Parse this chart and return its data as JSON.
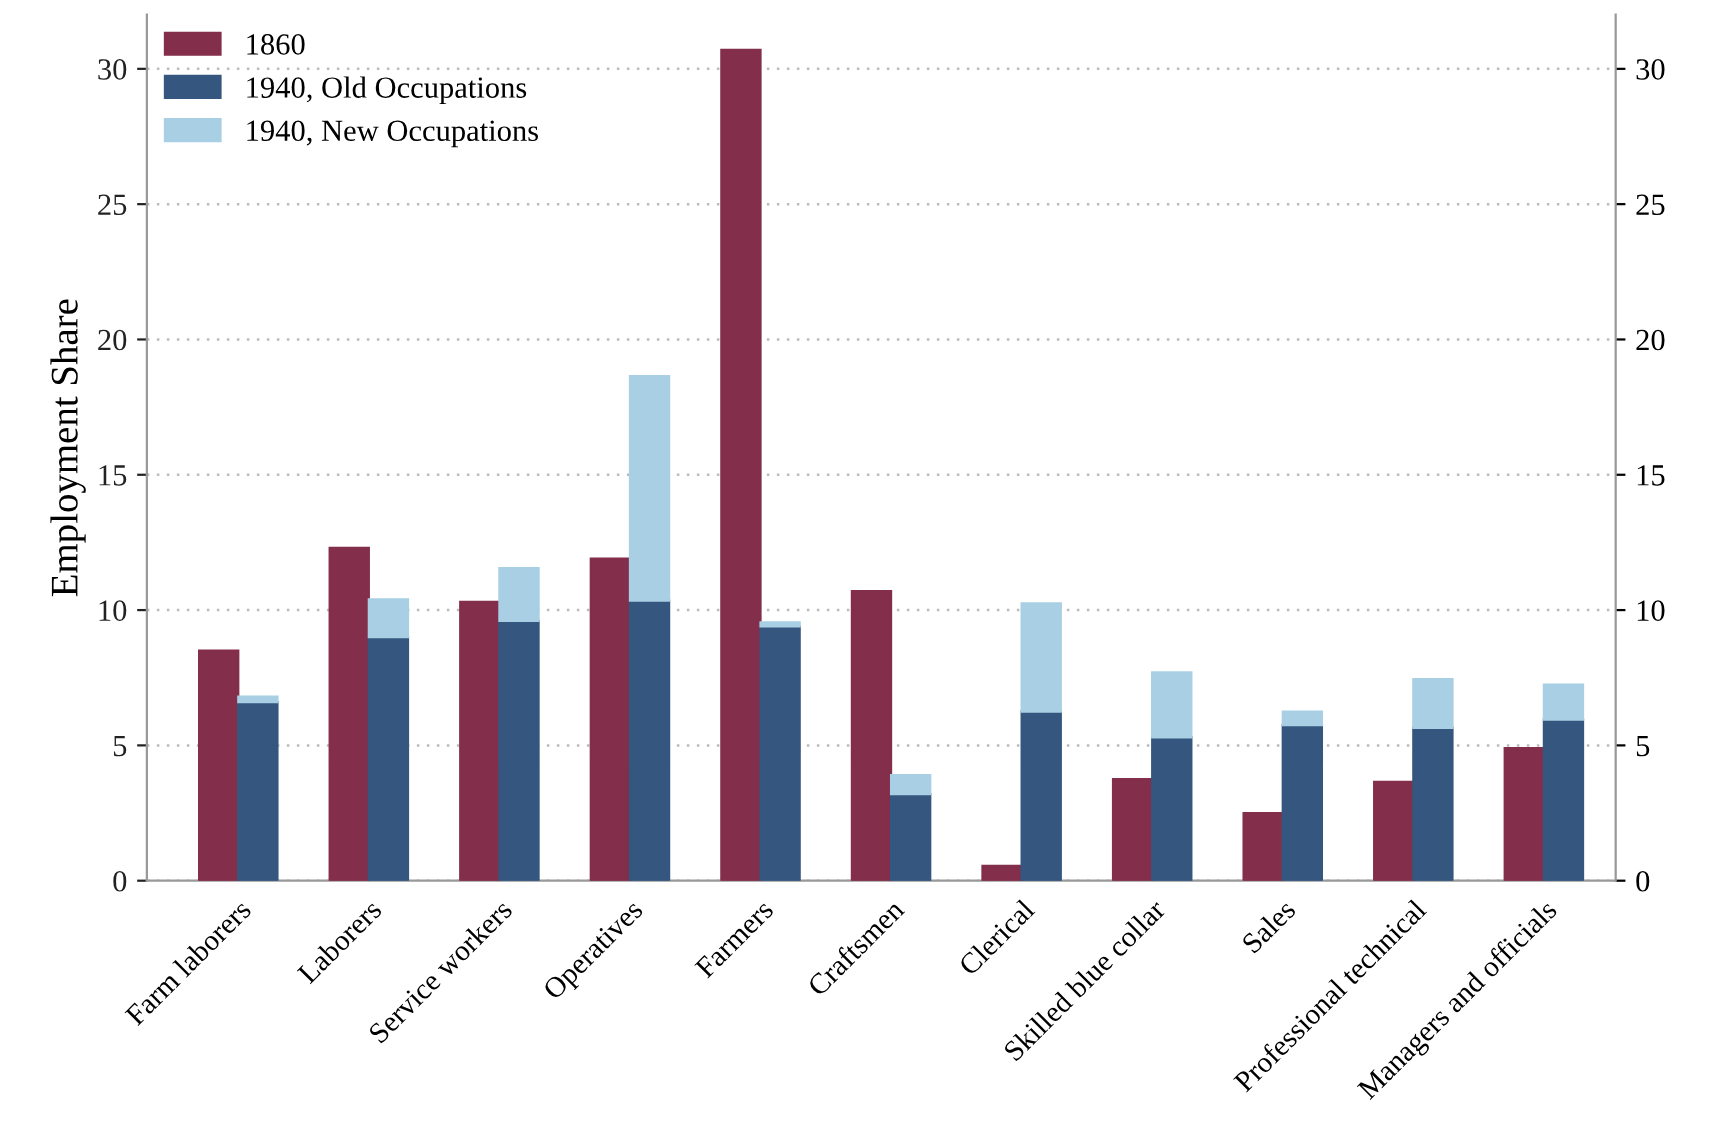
{
  "chart_data": {
    "type": "bar",
    "ylabel": "Employment Share",
    "categories": [
      "Farm laborers",
      "Laborers",
      "Service workers",
      "Operatives",
      "Farmers",
      "Craftsmen",
      "Clerical",
      "Skilled blue collar",
      "Sales",
      "Professional technical",
      "Managers and officials"
    ],
    "series": [
      {
        "name": "1860",
        "color": "#832e4a",
        "values": [
          8.5,
          12.3,
          10.3,
          11.9,
          30.7,
          10.7,
          0.55,
          3.75,
          2.5,
          3.65,
          4.9
        ]
      },
      {
        "name": "1940, Old Occupations",
        "color": "#35577f",
        "values": [
          6.6,
          9.0,
          9.6,
          10.35,
          9.4,
          3.2,
          6.25,
          5.3,
          5.75,
          5.65,
          5.95
        ],
        "base": [
          0,
          0,
          0,
          0,
          0,
          0,
          0,
          0,
          0,
          0,
          0
        ]
      },
      {
        "name": "1940, New Occupations",
        "color": "#a8cfe3",
        "values": [
          0.2,
          1.4,
          1.95,
          8.3,
          0.15,
          0.7,
          4.0,
          2.4,
          0.5,
          1.8,
          1.3
        ],
        "base": [
          6.6,
          9.0,
          9.6,
          10.35,
          9.4,
          3.2,
          6.25,
          5.3,
          5.75,
          5.65,
          5.95
        ]
      }
    ],
    "ylim": [
      0,
      32
    ],
    "yticks": [
      0,
      5,
      10,
      15,
      20,
      25,
      30
    ],
    "y2lim": [
      0,
      32
    ],
    "y2ticks": [
      0,
      5,
      10,
      15,
      20,
      25,
      30
    ],
    "grid": "y",
    "legend": "top left"
  }
}
